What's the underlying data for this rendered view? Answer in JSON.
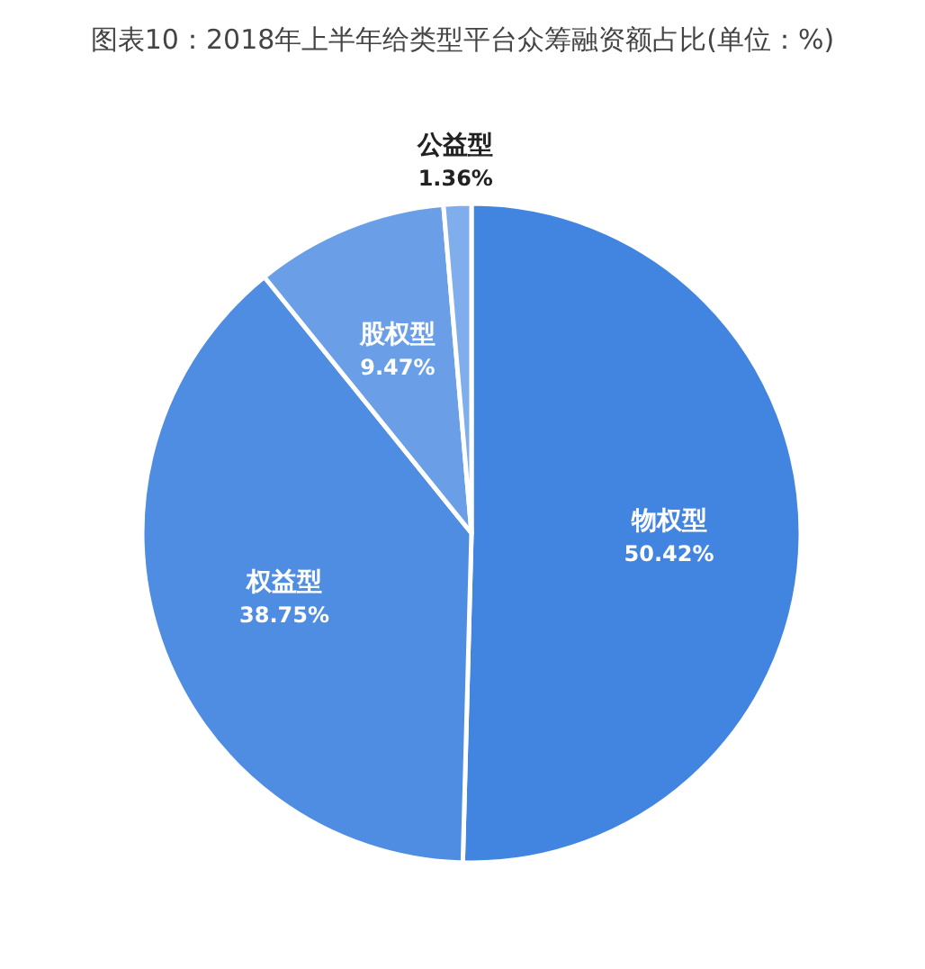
{
  "chart_data": {
    "type": "pie",
    "title": "图表10：2018年上半年给类型平台众筹融资额占比(单位：%)",
    "categories": [
      "物权型",
      "权益型",
      "股权型",
      "公益型"
    ],
    "values": [
      50.42,
      38.75,
      9.47,
      1.36
    ],
    "colors": [
      "#4285e0",
      "#4f8de2",
      "#6a9fe8",
      "#80aeec"
    ],
    "value_labels": [
      "50.42%",
      "38.75%",
      "9.47%",
      "1.36%"
    ]
  }
}
